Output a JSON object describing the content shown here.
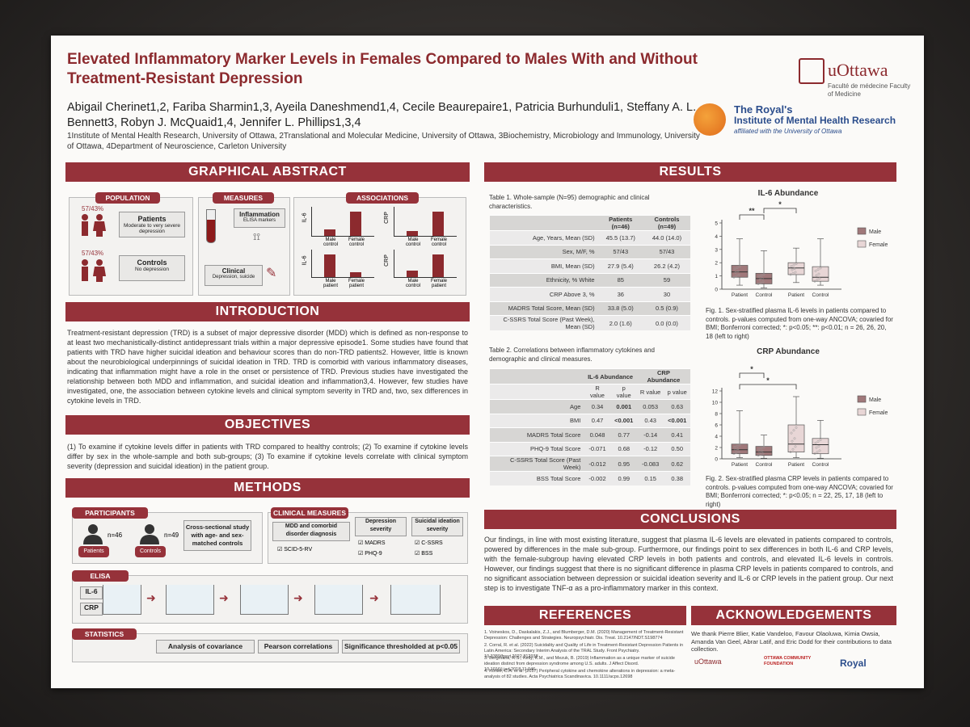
{
  "poster": {
    "title": "Elevated Inflammatory Marker Levels in Females Compared to Males With and Without Treatment-Resistant Depression",
    "authors": "Abigail Cherinet1,2, Fariba Sharmin1,3, Ayeila Daneshmend1,4, Cecile Beaurepaire1, Patricia Burhunduli1, Steffany A. L. Bennett3, Robyn J. McQuaid1,4, Jennifer L. Phillips1,3,4",
    "affiliations": "1Institute of Mental Health Research, University of Ottawa, 2Translational and Molecular Medicine, University of Ottawa, 3Biochemistry, Microbiology and Immunology, University of Ottawa, 4Department of Neuroscience, Carleton University",
    "logo_uottawa": "uOttawa",
    "logo_uottawa_sub": "Faculté de médecine Faculty of Medicine",
    "logo_royal_1": "The Royal's",
    "logo_royal_2": "Institute of Mental Health Research",
    "logo_royal_3": "affiliated with the University of Ottawa"
  },
  "graphical_abstract": {
    "heading": "GRAPHICAL ABSTRACT",
    "population_label": "POPULATION",
    "measures_label": "MEASURES",
    "associations_label": "ASSOCIATIONS",
    "pct1": "57/43%",
    "pct2": "57/43%",
    "patients": "Patients",
    "patients_sub": "Moderate to very severe depression",
    "controls": "Controls",
    "controls_sub": "No depression",
    "inflammation": "Inflammation",
    "inflammation_sub": "ELISA markers",
    "clinical": "Clinical",
    "clinical_sub": "Depression, suicide",
    "il6": "IL-6",
    "crp": "CRP",
    "male_control": "Male control",
    "female_control": "Female control",
    "male_patient": "Male patient",
    "female_patient": "Female patient"
  },
  "introduction": {
    "heading": "INTRODUCTION",
    "text": "Treatment-resistant depression (TRD) is a subset of major depressive disorder (MDD) which is defined as non-response to at least two mechanistically-distinct antidepressant trials within a major depressive episode1. Some studies have found that patients with TRD have higher suicidal ideation and behaviour scores than do non-TRD patients2. However, little is known about the neurobiological underpinnings of suicidal ideation in TRD. TRD is comorbid with various inflammatory diseases, indicating that inflammation might have a role in the onset or persistence of TRD. Previous studies have investigated the relationship between both MDD and inflammation, and suicidal ideation and inflammation3,4. However, few studies have investigated, one, the association between cytokine levels and clinical symptom severity in TRD and, two, sex differences in cytokine levels in TRD."
  },
  "objectives": {
    "heading": "OBJECTIVES",
    "text": "(1) To examine if cytokine levels differ in patients with TRD compared to healthy controls; (2) To examine if cytokine levels differ by sex in the whole-sample and both sub-groups; (3) To examine if cytokine levels correlate with clinical symptom severity (depression and suicidal ideation) in the patient group."
  },
  "methods": {
    "heading": "METHODS",
    "participants_label": "PARTICIPANTS",
    "n_patients": "n=46",
    "n_controls": "n=49",
    "patients": "Patients",
    "controls": "Controls",
    "study_design": "Cross-sectional study with age- and sex-matched controls",
    "clinical_label": "CLINICAL MEASURES",
    "mdd_diag": "MDD and comorbid disorder diagnosis",
    "scid": "SCID-5-RV",
    "dep_sev": "Depression severity",
    "madrs": "MADRS",
    "phq9": "PHQ-9",
    "sui_sev": "Suicidal ideation severity",
    "cssrs": "C-SSRS",
    "bss": "BSS",
    "elisa_label": "ELISA",
    "il6": "IL-6",
    "crp": "CRP",
    "statistics_label": "STATISTICS",
    "stat1": "Analysis of covariance",
    "stat2": "Pearson correlations",
    "stat3": "Significance thresholded at p<0.05"
  },
  "results": {
    "heading": "RESULTS",
    "table1_caption": "Table 1. Whole-sample (N=95) demographic and clinical characteristics.",
    "table1_headers": [
      "",
      "Patients (n=46)",
      "Controls (n=49)"
    ],
    "table1_rows": [
      [
        "Age, Years, Mean (SD)",
        "45.5 (13.7)",
        "44.0 (14.0)"
      ],
      [
        "Sex, M/F, %",
        "57/43",
        "57/43"
      ],
      [
        "BMI, Mean (SD)",
        "27.9 (5.4)",
        "26.2 (4.2)"
      ],
      [
        "Ethnicity, % White",
        "85",
        "59"
      ],
      [
        "CRP Above 3, %",
        "36",
        "30"
      ],
      [
        "MADRS Total Score, Mean (SD)",
        "33.8 (5.0)",
        "0.5 (0.9)"
      ],
      [
        "C-SSRS Total Score (Past Week), Mean (SD)",
        "2.0 (1.6)",
        "0.0 (0.0)"
      ]
    ],
    "table2_caption": "Table 2. Correlations between inflammatory cytokines and demographic and clinical measures.",
    "table2_group_headers": [
      "",
      "IL-6 Abundance",
      "CRP Abundance"
    ],
    "table2_sub_headers": [
      "",
      "R value",
      "p value",
      "R value",
      "p value"
    ],
    "table2_rows": [
      [
        "Age",
        "0.34",
        "0.001",
        "0.053",
        "0.63"
      ],
      [
        "BMI",
        "0.47",
        "<0.001",
        "0.43",
        "<0.001"
      ],
      [
        "MADRS Total Score",
        "0.048",
        "0.77",
        "-0.14",
        "0.41"
      ],
      [
        "PHQ-9 Total Score",
        "-0.071",
        "0.68",
        "-0.12",
        "0.50"
      ],
      [
        "C-SSRS Total Score (Past Week)",
        "-0.012",
        "0.95",
        "-0.083",
        "0.62"
      ],
      [
        "BSS Total Score",
        "-0.002",
        "0.99",
        "0.15",
        "0.38"
      ]
    ],
    "fig1_caption": "Fig. 1. Sex-stratified plasma IL-6 levels in patients compared to controls. p-values computed from one-way ANCOVA; covaried for BMI; Bonferroni corrected; *: p<0.05; **: p<0.01; n = 26, 26, 20, 18 (left to right)",
    "fig2_caption": "Fig. 2. Sex-stratified plasma CRP levels in patients compared to controls. p-values computed from one-way ANCOVA; covaried for BMI; Bonferroni corrected; *: p<0.05; n = 22, 25, 17, 18 (left to right)"
  },
  "conclusions": {
    "heading": "CONCLUSIONS",
    "text": "Our findings, in line with most existing literature, suggest that plasma IL-6 levels are elevated in patients compared to controls, powered by differences in the male sub-group. Furthermore, our findings point to sex differences in both IL-6 and CRP levels, with the female-subgroup having elevated CRP levels in both patients and controls, and elevated IL-6 levels in controls. However, our findings suggest that there is no significant difference in plasma CRP levels in patients compared to controls, and no significant association between depression or suicidal ideation severity and IL-6 or CRP levels in the patient group. Our next step is to investigate TNF-α as a pro-inflammatory marker in this context."
  },
  "references": {
    "heading": "REFERENCES",
    "items": [
      "1. Voineskos, D., Daskalakis, Z.J., and Blumberger, D.M. (2020) Management of Treatment-Resistant Depression: Challenges and Strategies. Neuropsychiatr. Dis. Treat. 10.2147/NDT.S198774",
      "2. Corral, R. et al. (2022) Suicidality and Quality of Life in Treatment-Resistant Depression Patients in Latin America: Secondary Interim Analysis of the TRAL Study. Front Psychiatry. 10.3389/fpsyt.2022.812938",
      "3. Bergmans, R.S., Kelly, K.M., and Mezuk, B. (2019) Inflammation as a unique marker of suicide ideation distinct from depression syndrome among U.S. adults. J Affect Disord. 10.1016/j.jad.2018.11.046",
      "4. Köhler, C.A. et al. (2017) Peripheral cytokine and chemokine alterations in depression: a meta-analysis of 82 studies. Acta Psychiatrica Scandinavica. 10.1111/acps.12698"
    ]
  },
  "acknowledgements": {
    "heading": "ACKNOWLEDGEMENTS",
    "text": "We thank Pierre Blier, Katie Vandeloo, Favour Olaoluwa, Kimia Owsia, Amanda Van Geel, Abrar Latif, and Eric Dodd for their contributions to data collection.",
    "sponsor1": "uOttawa",
    "sponsor2": "OTTAWA COMMUNITY FOUNDATION",
    "sponsor3": "Royal"
  },
  "colors": {
    "accent": "#96323a",
    "male": "#a0787a",
    "female": "#e8d6d6"
  },
  "chart_data": [
    {
      "type": "box",
      "title": "IL-6 Abundance",
      "categories": [
        "Patient",
        "Control",
        "Patient",
        "Control"
      ],
      "series_by_category": [
        "Male",
        "Male",
        "Female",
        "Female"
      ],
      "legend": [
        "Male",
        "Female"
      ],
      "ylim": [
        0,
        5
      ],
      "yticks": [
        "0",
        "1",
        "2",
        "3",
        "4",
        "5"
      ],
      "boxes": [
        {
          "min": 0.3,
          "q1": 0.9,
          "median": 1.3,
          "q3": 1.8,
          "max": 3.8
        },
        {
          "min": 0.1,
          "q1": 0.4,
          "median": 0.8,
          "q3": 1.2,
          "max": 2.9
        },
        {
          "min": 0.5,
          "q1": 1.1,
          "median": 1.6,
          "q3": 2.0,
          "max": 3.1
        },
        {
          "min": 0.3,
          "q1": 0.6,
          "median": 0.9,
          "q3": 1.7,
          "max": 3.8
        }
      ],
      "annotations": [
        "**",
        "*"
      ]
    },
    {
      "type": "box",
      "title": "CRP Abundance",
      "categories": [
        "Patient",
        "Control",
        "Patient",
        "Control"
      ],
      "series_by_category": [
        "Male",
        "Male",
        "Female",
        "Female"
      ],
      "legend": [
        "Male",
        "Female"
      ],
      "ylim": [
        0,
        12
      ],
      "yticks": [
        "0",
        "2",
        "4",
        "6",
        "8",
        "10",
        "12"
      ],
      "boxes": [
        {
          "min": 0.2,
          "q1": 0.9,
          "median": 1.6,
          "q3": 2.6,
          "max": 8.5
        },
        {
          "min": 0.1,
          "q1": 0.6,
          "median": 1.2,
          "q3": 2.2,
          "max": 4.2
        },
        {
          "min": 0.2,
          "q1": 1.2,
          "median": 2.6,
          "q3": 6.0,
          "max": 11.0
        },
        {
          "min": 0.1,
          "q1": 0.9,
          "median": 2.5,
          "q3": 3.6,
          "max": 6.8
        }
      ],
      "annotations": [
        "*",
        "*"
      ]
    }
  ]
}
